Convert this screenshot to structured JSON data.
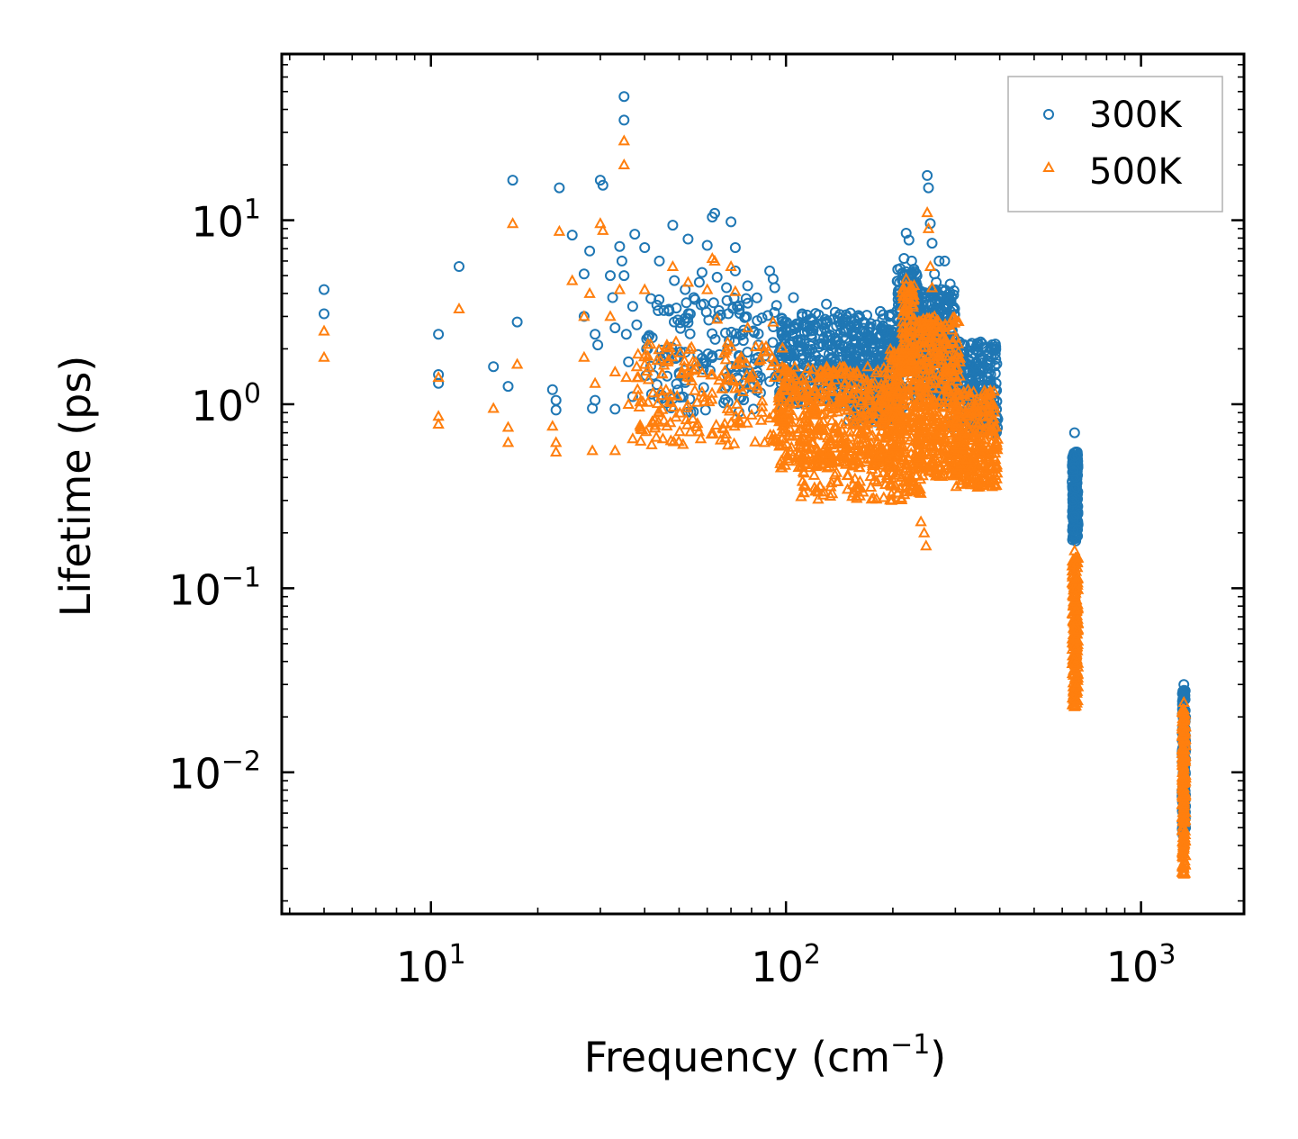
{
  "chart_data": {
    "type": "scatter",
    "xscale": "log",
    "yscale": "log",
    "xlim": [
      3.8,
      1950
    ],
    "ylim": [
      0.0017,
      80
    ],
    "xlabel": {
      "base": "Frequency (cm",
      "sup": "−1",
      "tail": ")"
    },
    "ylabel": "Lifetime (ps)",
    "xticks": [
      {
        "value": 10,
        "base": "10",
        "exp": "1"
      },
      {
        "value": 100,
        "base": "10",
        "exp": "2"
      },
      {
        "value": 1000,
        "base": "10",
        "exp": "3"
      }
    ],
    "yticks": [
      {
        "value": 10,
        "base": "10",
        "exp": "1"
      },
      {
        "value": 1,
        "base": "10",
        "exp": "0"
      },
      {
        "value": 0.1,
        "base": "10",
        "exp": "−1"
      },
      {
        "value": 0.01,
        "base": "10",
        "exp": "−2"
      }
    ],
    "legend_position": "top-right",
    "series": [
      {
        "name": "300K",
        "marker": "circle",
        "color": "#1f77b4",
        "points": [
          [
            5.0,
            4.2
          ],
          [
            5.0,
            3.1
          ],
          [
            10.5,
            2.4
          ],
          [
            10.5,
            1.45
          ],
          [
            10.5,
            1.3
          ],
          [
            12.0,
            5.6
          ],
          [
            15.0,
            1.6
          ],
          [
            16.5,
            1.25
          ],
          [
            17.0,
            16.5
          ],
          [
            17.5,
            2.8
          ],
          [
            22.0,
            1.2
          ],
          [
            22.5,
            1.05
          ],
          [
            22.5,
            0.93
          ],
          [
            23.0,
            15.0
          ],
          [
            25.0,
            8.3
          ],
          [
            27.0,
            5.1
          ],
          [
            27.0,
            3.0
          ],
          [
            28.0,
            6.8
          ],
          [
            28.5,
            0.95
          ],
          [
            29.0,
            2.4
          ],
          [
            29.0,
            1.05
          ],
          [
            29.5,
            2.1
          ],
          [
            30.0,
            16.5
          ],
          [
            30.5,
            15.5
          ],
          [
            32.0,
            5.0
          ],
          [
            32.5,
            3.8
          ],
          [
            33.0,
            2.6
          ],
          [
            33.0,
            0.94
          ],
          [
            34.0,
            7.2
          ],
          [
            34.5,
            6.0
          ],
          [
            35.0,
            47.0
          ],
          [
            35.0,
            35.0
          ],
          [
            35.0,
            5.0
          ],
          [
            35.5,
            2.4
          ],
          [
            36.0,
            1.7
          ],
          [
            37.0,
            3.4
          ],
          [
            37.0,
            1.1
          ],
          [
            37.5,
            8.4
          ],
          [
            38.0,
            2.7
          ],
          [
            40.0,
            7.1
          ],
          [
            40.5,
            2.0
          ],
          [
            42.0,
            2.3
          ],
          [
            44.0,
            6.0
          ],
          [
            45.0,
            1.7
          ],
          [
            46.0,
            1.8
          ],
          [
            48.0,
            9.4
          ],
          [
            48.5,
            4.7
          ],
          [
            49.5,
            1.8
          ],
          [
            52.0,
            4.2
          ],
          [
            53.0,
            7.9
          ],
          [
            55.0,
            3.8
          ],
          [
            57.0,
            4.6
          ],
          [
            58.0,
            5.2
          ],
          [
            60.0,
            7.3
          ],
          [
            62.0,
            10.4
          ],
          [
            63.0,
            10.9
          ],
          [
            64.0,
            4.9
          ],
          [
            68.0,
            4.3
          ],
          [
            70.0,
            9.8
          ],
          [
            72.0,
            7.1
          ],
          [
            72.0,
            5.3
          ],
          [
            78.0,
            4.4
          ],
          [
            90.0,
            5.3
          ],
          [
            92.0,
            4.8
          ],
          [
            93.0,
            4.3
          ],
          [
            105.0,
            3.8
          ],
          [
            130.0,
            3.5
          ],
          [
            180.0,
            2.7
          ],
          [
            215.0,
            6.2
          ],
          [
            218.0,
            8.5
          ],
          [
            222.0,
            7.8
          ],
          [
            226.0,
            6.0
          ],
          [
            250.0,
            17.5
          ],
          [
            252.0,
            15.0
          ],
          [
            255.0,
            9.6
          ],
          [
            258.0,
            7.5
          ],
          [
            262.0,
            5.1
          ],
          [
            265.0,
            4.6
          ],
          [
            270.0,
            6.0
          ],
          [
            280.0,
            6.0
          ],
          [
            290.0,
            4.5
          ],
          [
            350.0,
            1.4
          ],
          [
            370.0,
            1.4
          ],
          [
            380.0,
            1.1
          ],
          [
            650.0,
            0.7
          ],
          [
            650.0,
            0.5
          ],
          [
            655.0,
            0.55
          ],
          [
            660.0,
            0.55
          ],
          [
            650.0,
            0.3
          ],
          [
            655.0,
            0.2
          ],
          [
            1320.0,
            0.03
          ],
          [
            1320.0,
            0.027
          ]
        ],
        "clusters": [
          {
            "xr": [
              40,
              100
            ],
            "yr": [
              0.9,
              3.8
            ],
            "n": 170
          },
          {
            "xr": [
              95,
              200
            ],
            "yr": [
              1.0,
              3.2
            ],
            "n": 420
          },
          {
            "xr": [
              150,
              215
            ],
            "yr": [
              0.8,
              2.6
            ],
            "n": 200
          },
          {
            "xr": [
              205,
              235
            ],
            "yr": [
              1.5,
              5.5
            ],
            "n": 160
          },
          {
            "xr": [
              230,
              300
            ],
            "yr": [
              1.0,
              4.2
            ],
            "n": 320
          },
          {
            "xr": [
              290,
              395
            ],
            "yr": [
              0.7,
              2.2
            ],
            "n": 240
          },
          {
            "xr": [
              640,
              665
            ],
            "yr": [
              0.18,
              0.55
            ],
            "n": 180
          },
          {
            "xr": [
              1305,
              1335
            ],
            "yr": [
              0.0045,
              0.028
            ],
            "n": 160
          }
        ]
      },
      {
        "name": "500K",
        "marker": "triangle",
        "color": "#ff7f0e",
        "points": [
          [
            5.0,
            2.5
          ],
          [
            5.0,
            1.8
          ],
          [
            10.5,
            1.4
          ],
          [
            10.5,
            0.86
          ],
          [
            10.5,
            0.78
          ],
          [
            12.0,
            3.3
          ],
          [
            15.0,
            0.95
          ],
          [
            16.5,
            0.75
          ],
          [
            16.5,
            0.62
          ],
          [
            17.0,
            9.6
          ],
          [
            17.5,
            1.65
          ],
          [
            22.0,
            0.76
          ],
          [
            22.5,
            0.62
          ],
          [
            22.5,
            0.55
          ],
          [
            23.0,
            8.7
          ],
          [
            25.0,
            4.7
          ],
          [
            27.0,
            1.8
          ],
          [
            27.0,
            3.0
          ],
          [
            28.0,
            4.0
          ],
          [
            28.5,
            0.56
          ],
          [
            29.0,
            1.3
          ],
          [
            30.0,
            9.6
          ],
          [
            30.5,
            8.8
          ],
          [
            32.0,
            3.0
          ],
          [
            33.0,
            1.5
          ],
          [
            33.0,
            0.56
          ],
          [
            34.0,
            4.2
          ],
          [
            35.0,
            27.0
          ],
          [
            35.0,
            20.0
          ],
          [
            35.5,
            1.4
          ],
          [
            36.0,
            1.0
          ],
          [
            37.0,
            0.65
          ],
          [
            38.0,
            1.6
          ],
          [
            40.0,
            4.2
          ],
          [
            45.0,
            0.65
          ],
          [
            48.0,
            5.6
          ],
          [
            53.0,
            4.6
          ],
          [
            60.0,
            4.2
          ],
          [
            62.0,
            6.2
          ],
          [
            63.0,
            6.0
          ],
          [
            64.0,
            2.9
          ],
          [
            70.0,
            5.6
          ],
          [
            72.0,
            4.1
          ],
          [
            78.0,
            2.6
          ],
          [
            92.0,
            2.8
          ],
          [
            215.0,
            3.2
          ],
          [
            218.0,
            4.8
          ],
          [
            222.0,
            4.1
          ],
          [
            250.0,
            11.0
          ],
          [
            252.0,
            9.0
          ],
          [
            255.0,
            5.6
          ],
          [
            258.0,
            4.3
          ],
          [
            262.0,
            3.0
          ],
          [
            245.0,
            0.2
          ],
          [
            248.0,
            0.17
          ],
          [
            240.0,
            0.23
          ],
          [
            650.0,
            0.16
          ],
          [
            650.0,
            0.13
          ],
          [
            1320.0,
            0.024
          ],
          [
            1320.0,
            0.0028
          ]
        ],
        "clusters": [
          {
            "xr": [
              38,
              100
            ],
            "yr": [
              0.6,
              2.2
            ],
            "n": 200
          },
          {
            "xr": [
              95,
              210
            ],
            "yr": [
              0.45,
              1.6
            ],
            "n": 500
          },
          {
            "xr": [
              110,
              200
            ],
            "yr": [
              0.3,
              0.6
            ],
            "n": 110
          },
          {
            "xr": [
              195,
              240
            ],
            "yr": [
              0.3,
              2.0
            ],
            "n": 250
          },
          {
            "xr": [
              212,
              230
            ],
            "yr": [
              1.5,
              4.5
            ],
            "n": 90
          },
          {
            "xr": [
              235,
              310
            ],
            "yr": [
              0.4,
              3.0
            ],
            "n": 360
          },
          {
            "xr": [
              300,
              395
            ],
            "yr": [
              0.35,
              1.2
            ],
            "n": 280
          },
          {
            "xr": [
              640,
              665
            ],
            "yr": [
              0.022,
              0.15
            ],
            "n": 220
          },
          {
            "xr": [
              1305,
              1335
            ],
            "yr": [
              0.0028,
              0.022
            ],
            "n": 200
          }
        ]
      }
    ]
  }
}
